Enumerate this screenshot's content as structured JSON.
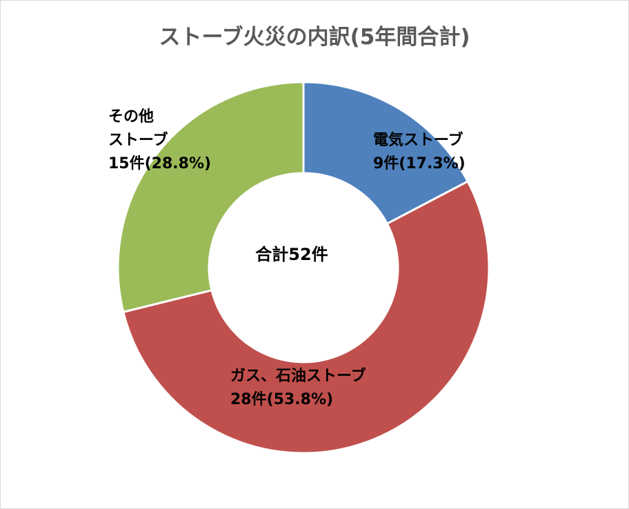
{
  "chart_data": {
    "type": "pie",
    "variant": "donut",
    "title": "ストーブ火災の内訳(5年間合計)",
    "center_label": "合計52件",
    "total": 52,
    "unit": "件",
    "slices": [
      {
        "name": "電気ストーブ",
        "value": 9,
        "label_lines": [
          "電気ストーブ",
          "9件(17.3%)"
        ],
        "color": "#4f81bd"
      },
      {
        "name": "ガス、石油ストーブ",
        "value": 28,
        "label_lines": [
          "ガス、石油ストーブ",
          "28件(53.8%)"
        ],
        "color": "#c0504d"
      },
      {
        "name": "その他ストーブ",
        "value": 15,
        "label_lines": [
          "その他",
          "ストーブ",
          "15件(28.8%)"
        ],
        "color": "#9bbb59"
      }
    ],
    "legend": "none"
  }
}
